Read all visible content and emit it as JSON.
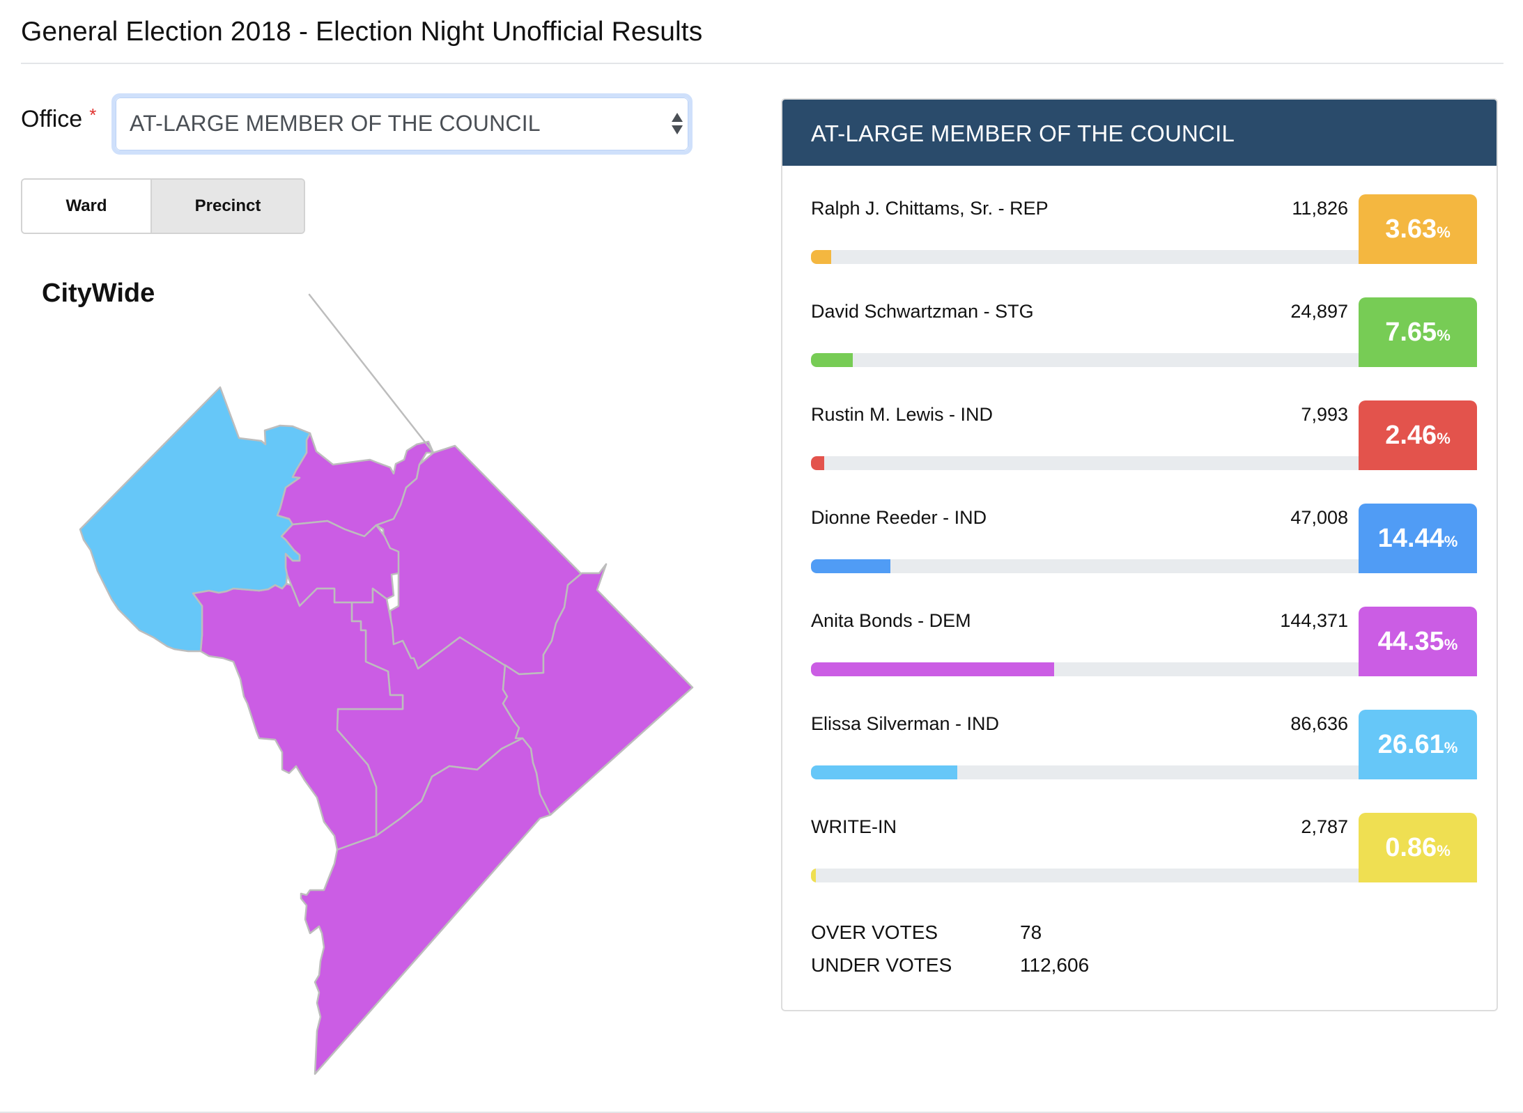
{
  "page": {
    "title": "General Election 2018 - Election Night Unofficial Results"
  },
  "filters": {
    "office_label": "Office",
    "required_marker": "*",
    "office_selected": "AT-LARGE MEMBER OF THE COUNCIL",
    "view_toggle": [
      {
        "label": "Ward",
        "active": false
      },
      {
        "label": "Precinct",
        "active": true
      }
    ]
  },
  "map": {
    "title": "CityWide",
    "ward_fill_colors": {
      "ward3": "#66c7f8",
      "other_wards": "#cb5de4"
    },
    "border_color": "#bdbdbd"
  },
  "results": {
    "office_title": "AT-LARGE MEMBER OF THE COUNCIL",
    "candidates": [
      {
        "name": "Ralph J. Chittams, Sr. - REP",
        "votes": "11,826",
        "percent": "3.63",
        "percent_value": 3.63,
        "color": "#f4b740"
      },
      {
        "name": "David Schwartzman - STG",
        "votes": "24,897",
        "percent": "7.65",
        "percent_value": 7.65,
        "color": "#77cc55"
      },
      {
        "name": "Rustin M. Lewis - IND",
        "votes": "7,993",
        "percent": "2.46",
        "percent_value": 2.46,
        "color": "#e3534c"
      },
      {
        "name": "Dionne Reeder - IND",
        "votes": "47,008",
        "percent": "14.44",
        "percent_value": 14.44,
        "color": "#509cf5"
      },
      {
        "name": "Anita Bonds - DEM",
        "votes": "144,371",
        "percent": "44.35",
        "percent_value": 44.35,
        "color": "#cb5de4"
      },
      {
        "name": "Elissa Silverman - IND",
        "votes": "86,636",
        "percent": "26.61",
        "percent_value": 26.61,
        "color": "#66c7f8"
      },
      {
        "name": "WRITE-IN",
        "votes": "2,787",
        "percent": "0.86",
        "percent_value": 0.86,
        "color": "#efdf52"
      }
    ],
    "percent_sign": "%",
    "totals": [
      {
        "label": "OVER VOTES",
        "value": "78"
      },
      {
        "label": "UNDER VOTES",
        "value": "112,606"
      }
    ]
  },
  "colors": {
    "header_bg": "#2a4b6b",
    "bar_track": "#e8ebee"
  }
}
